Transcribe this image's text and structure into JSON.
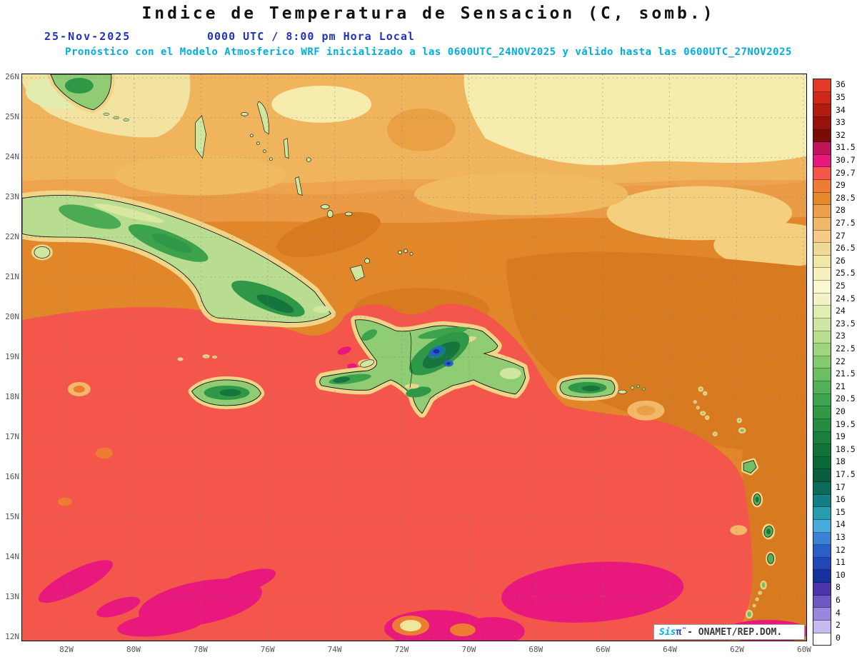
{
  "header": {
    "title": "Indice de Temperatura de Sensacion (C, somb.)",
    "date": "25-Nov-2025",
    "local_time": "0000 UTC / 8:00 pm Hora Local",
    "forecast": "Pronóstico con el Modelo Atmosferico WRF inicializado a las 0600UTC_24NOV2025 y válido hasta las  0600UTC_27NOV2025"
  },
  "axes": {
    "lat": [
      "26N",
      "25N",
      "24N",
      "23N",
      "22N",
      "21N",
      "20N",
      "19N",
      "18N",
      "17N",
      "16N",
      "15N",
      "14N",
      "13N",
      "12N"
    ],
    "lon": [
      "82W",
      "80W",
      "78W",
      "76W",
      "74W",
      "72W",
      "70W",
      "68W",
      "66W",
      "64W",
      "62W",
      "60W"
    ]
  },
  "colorbar": {
    "levels": [
      {
        "label": "36",
        "color": "#e13a27"
      },
      {
        "label": "35",
        "color": "#cd2718"
      },
      {
        "label": "34",
        "color": "#b31b0e"
      },
      {
        "label": "33",
        "color": "#97120a"
      },
      {
        "label": "32",
        "color": "#7a0c08"
      },
      {
        "label": "31.5",
        "color": "#c01458"
      },
      {
        "label": "30.7",
        "color": "#e8187c"
      },
      {
        "label": "29.7",
        "color": "#f4564b"
      },
      {
        "label": "29",
        "color": "#ee7c33"
      },
      {
        "label": "28.5",
        "color": "#e4882a"
      },
      {
        "label": "28",
        "color": "#eca04c"
      },
      {
        "label": "27.5",
        "color": "#f2b768"
      },
      {
        "label": "27",
        "color": "#f5ca88"
      },
      {
        "label": "26.5",
        "color": "#eeda96"
      },
      {
        "label": "26",
        "color": "#f2e8a6"
      },
      {
        "label": "25.5",
        "color": "#f7f0bc"
      },
      {
        "label": "25",
        "color": "#fbf7d2"
      },
      {
        "label": "24.5",
        "color": "#f1f3c6"
      },
      {
        "label": "24",
        "color": "#e1eeb2"
      },
      {
        "label": "23.5",
        "color": "#cfe7a0"
      },
      {
        "label": "23",
        "color": "#b9de90"
      },
      {
        "label": "22.5",
        "color": "#a0d580"
      },
      {
        "label": "22",
        "color": "#86ca70"
      },
      {
        "label": "21.5",
        "color": "#6cbe62"
      },
      {
        "label": "21",
        "color": "#52b156"
      },
      {
        "label": "20.5",
        "color": "#3fa44e"
      },
      {
        "label": "20",
        "color": "#309847"
      },
      {
        "label": "19.5",
        "color": "#248b41"
      },
      {
        "label": "19",
        "color": "#1a7f3d"
      },
      {
        "label": "18.5",
        "color": "#127339"
      },
      {
        "label": "18",
        "color": "#0b6735"
      },
      {
        "label": "17.5",
        "color": "#095e40"
      },
      {
        "label": "17",
        "color": "#0c6a58"
      },
      {
        "label": "16",
        "color": "#128083"
      },
      {
        "label": "15",
        "color": "#259fae"
      },
      {
        "label": "14",
        "color": "#49aadc"
      },
      {
        "label": "13",
        "color": "#3b82d6"
      },
      {
        "label": "12",
        "color": "#2a5fca"
      },
      {
        "label": "11",
        "color": "#2046b8"
      },
      {
        "label": "10",
        "color": "#16309e"
      },
      {
        "label": "8",
        "color": "#4c35aa"
      },
      {
        "label": "6",
        "color": "#7058c4"
      },
      {
        "label": "4",
        "color": "#9a86da"
      },
      {
        "label": "2",
        "color": "#c6baee"
      },
      {
        "label": "0",
        "color": "#ffffff"
      }
    ]
  },
  "branding": {
    "app": "Sis",
    "symbol": "π̃ ",
    "credit": "- ONAMET/REP.DOM."
  },
  "map_palette": {
    "sea_extreme_hot": "#e8187c",
    "sea_hot": "#f4564b",
    "sea_warm_orange": "#e2862a",
    "sea_dark_orange": "#d87b20",
    "sea_tan_band": "#efb45c",
    "sea_pale_yellow": "#f6ecae",
    "land_lowland": "#b9dd90",
    "land_forest": "#3da24c",
    "land_high": "#15753c",
    "mountain_cold_blue": "#2a5fca",
    "mountain_coldest_navy": "#16309e",
    "coast_fringe": "#f0d488"
  }
}
